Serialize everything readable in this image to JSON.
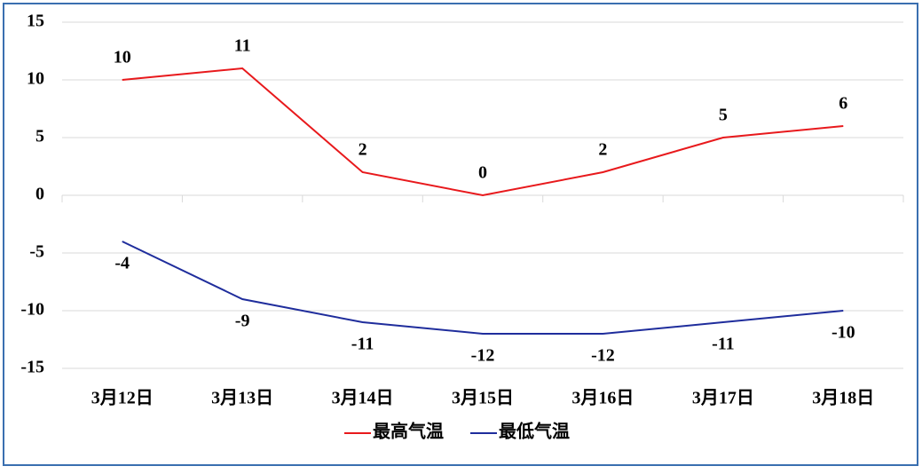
{
  "chart_data": {
    "type": "line",
    "categories": [
      "3月12日",
      "3月13日",
      "3月14日",
      "3月15日",
      "3月16日",
      "3月17日",
      "3月18日"
    ],
    "series": [
      {
        "name": "最高气温",
        "color": "#e8191c",
        "values": [
          10,
          11,
          2,
          0,
          2,
          5,
          6
        ]
      },
      {
        "name": "最低气温",
        "color": "#1f2d9c",
        "values": [
          -4,
          -9,
          -11,
          -12,
          -12,
          -11,
          -10
        ]
      }
    ],
    "ylim": [
      -15,
      15
    ],
    "yticks": [
      -15,
      -10,
      -5,
      0,
      5,
      10,
      15
    ],
    "grid": true,
    "legend": "bottom",
    "data_labels": true
  }
}
